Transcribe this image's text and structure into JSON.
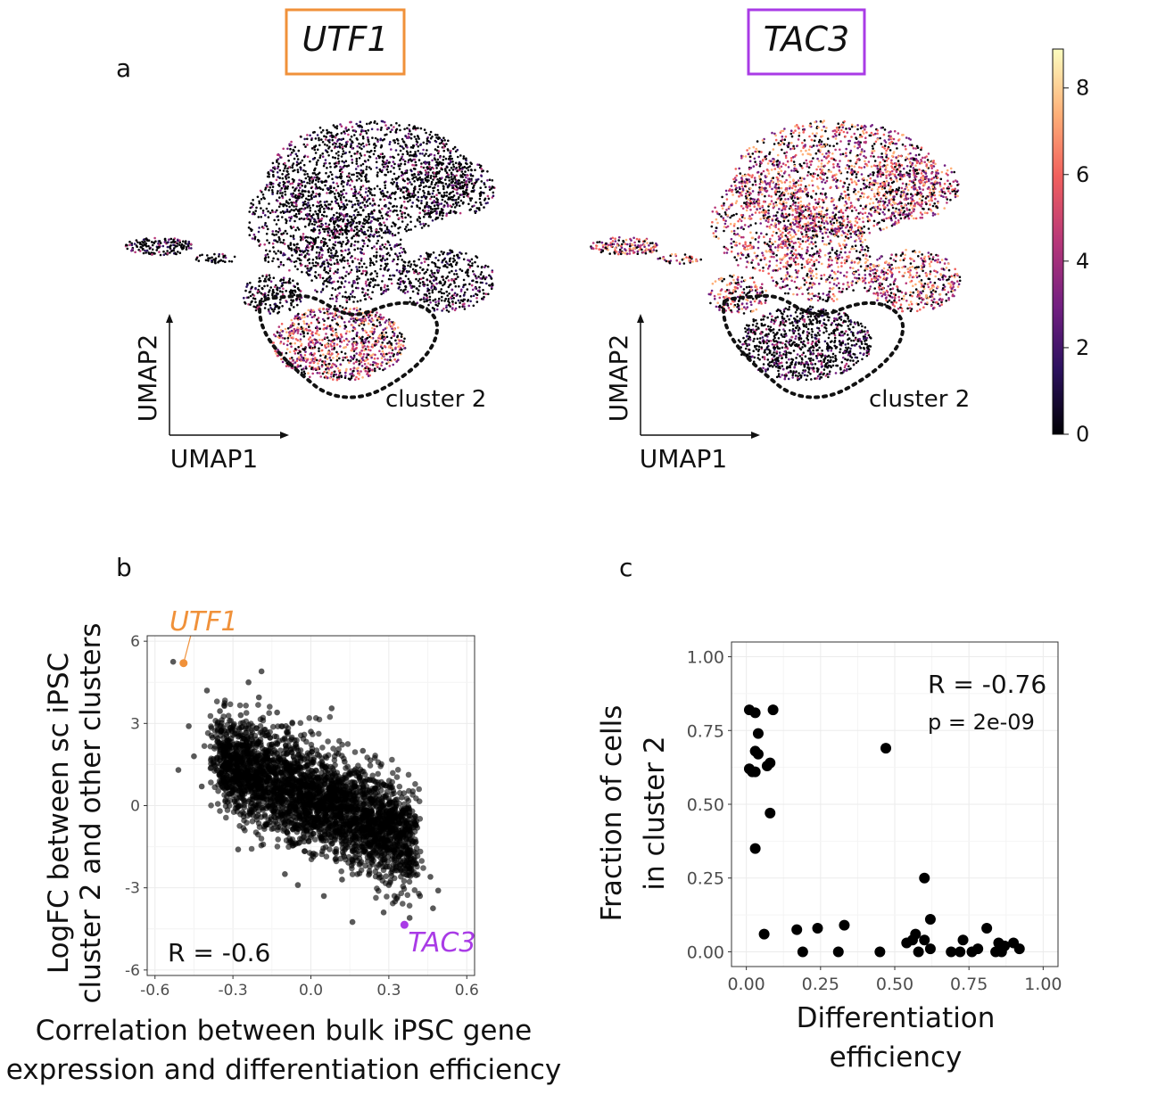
{
  "panel_a": {
    "letter": "a",
    "left": {
      "gene": "UTF1",
      "box_color": "#F0913A",
      "xlabel": "UMAP1",
      "ylabel": "UMAP2",
      "cluster_label": "cluster 2"
    },
    "right": {
      "gene": "TAC3",
      "box_color": "#A93BE6",
      "xlabel": "UMAP1",
      "ylabel": "UMAP2",
      "cluster_label": "cluster 2"
    },
    "colorbar": {
      "ticks": [
        "0",
        "2",
        "4",
        "6",
        "8"
      ],
      "min": 0,
      "max": 8.9,
      "colors": [
        "#000004",
        "#2C115F",
        "#721F81",
        "#B73779",
        "#F1605D",
        "#FEAF77",
        "#FCFDBF"
      ]
    }
  },
  "panel_b": {
    "letter": "b"
  },
  "panel_c": {
    "letter": "c"
  },
  "chart_data": [
    {
      "panel": "b",
      "type": "scatter",
      "xlabel": "Correlation between bulk iPSC gene expression and differentiation efficiency",
      "xlabel_lines": [
        "Correlation between bulk iPSC gene",
        "expression and differentiation efficiency"
      ],
      "ylabel": "LogFC between sc iPSC cluster 2 and other clusters",
      "ylabel_lines": [
        "LogFC between sc iPSC",
        "cluster 2 and other clusters"
      ],
      "xlim": [
        -0.63,
        0.63
      ],
      "ylim": [
        -6.2,
        6.2
      ],
      "xticks": [
        -0.6,
        -0.3,
        0.0,
        0.3,
        0.6
      ],
      "xtick_labels": [
        "-0.6",
        "-0.3",
        "0.0",
        "0.3",
        "0.6"
      ],
      "yticks": [
        -6,
        -3,
        0,
        3,
        6
      ],
      "ytick_labels": [
        "-6",
        "-3",
        "0",
        "3",
        "6"
      ],
      "correlation": "R = -0.6",
      "bulk_trend": {
        "n": 3200,
        "slope": -7.2,
        "intercept": 0.3,
        "sd": 0.9,
        "note": "dense cloud of genes along negative trend"
      },
      "outliers": [
        {
          "x": -0.53,
          "y": 5.25
        },
        {
          "x": -0.4,
          "y": 4.2
        },
        {
          "x": -0.35,
          "y": 3.45
        },
        {
          "x": -0.27,
          "y": 3.3
        },
        {
          "x": -0.24,
          "y": 4.5
        },
        {
          "x": -0.2,
          "y": 3.95
        },
        {
          "x": -0.19,
          "y": 4.9
        },
        {
          "x": -0.13,
          "y": 3.4
        },
        {
          "x": -0.47,
          "y": 2.9
        },
        {
          "x": -0.51,
          "y": 1.3
        },
        {
          "x": -0.45,
          "y": 1.8
        },
        {
          "x": -0.42,
          "y": 0.7
        },
        {
          "x": 0.08,
          "y": 3.55
        },
        {
          "x": 0.13,
          "y": 1.6
        },
        {
          "x": 0.2,
          "y": 2.0
        },
        {
          "x": 0.0,
          "y": 2.7
        },
        {
          "x": 0.35,
          "y": 0.3
        },
        {
          "x": 0.4,
          "y": -0.6
        },
        {
          "x": 0.28,
          "y": -3.9
        },
        {
          "x": 0.33,
          "y": -3.4
        },
        {
          "x": 0.42,
          "y": -3.3
        },
        {
          "x": 0.46,
          "y": -2.6
        },
        {
          "x": 0.49,
          "y": -3.1
        },
        {
          "x": 0.47,
          "y": -3.75
        },
        {
          "x": 0.38,
          "y": -4.1
        },
        {
          "x": 0.3,
          "y": -2.9
        },
        {
          "x": -0.1,
          "y": -2.5
        },
        {
          "x": -0.05,
          "y": -2.9
        },
        {
          "x": 0.05,
          "y": -3.3
        },
        {
          "x": 0.16,
          "y": -4.25
        },
        {
          "x": 0.12,
          "y": -2.7
        },
        {
          "x": -0.28,
          "y": -1.6
        }
      ],
      "highlighted": [
        {
          "gene": "UTF1",
          "x": -0.49,
          "y": 5.2,
          "color": "#F0913A"
        },
        {
          "gene": "TAC3",
          "x": 0.36,
          "y": -4.35,
          "color": "#A93BE6"
        }
      ]
    },
    {
      "panel": "c",
      "type": "scatter",
      "xlabel": "Differentiation efficiency",
      "xlabel_lines": [
        "Differentiation",
        "efficiency"
      ],
      "ylabel": "Fraction of cells in cluster 2",
      "ylabel_lines": [
        "Fraction of cells",
        "in cluster 2"
      ],
      "xlim": [
        -0.05,
        1.05
      ],
      "ylim": [
        -0.05,
        1.05
      ],
      "xticks": [
        0,
        0.25,
        0.5,
        0.75,
        1.0
      ],
      "xtick_labels": [
        "0.00",
        "0.25",
        "0.50",
        "0.75",
        "1.00"
      ],
      "yticks": [
        0,
        0.25,
        0.5,
        0.75,
        1.0
      ],
      "ytick_labels": [
        "0.00",
        "0.25",
        "0.50",
        "0.75",
        "1.00"
      ],
      "correlation": "R = -0.76",
      "p_value": "p = 2e-09",
      "points": [
        {
          "x": 0.01,
          "y": 0.82
        },
        {
          "x": 0.03,
          "y": 0.81
        },
        {
          "x": 0.09,
          "y": 0.82
        },
        {
          "x": 0.04,
          "y": 0.74
        },
        {
          "x": 0.03,
          "y": 0.68
        },
        {
          "x": 0.04,
          "y": 0.67
        },
        {
          "x": 0.08,
          "y": 0.64
        },
        {
          "x": 0.07,
          "y": 0.63
        },
        {
          "x": 0.01,
          "y": 0.62
        },
        {
          "x": 0.02,
          "y": 0.61
        },
        {
          "x": 0.03,
          "y": 0.61
        },
        {
          "x": 0.08,
          "y": 0.47
        },
        {
          "x": 0.03,
          "y": 0.35
        },
        {
          "x": 0.06,
          "y": 0.06
        },
        {
          "x": 0.47,
          "y": 0.69
        },
        {
          "x": 0.6,
          "y": 0.25
        },
        {
          "x": 0.62,
          "y": 0.11
        },
        {
          "x": 0.17,
          "y": 0.075
        },
        {
          "x": 0.24,
          "y": 0.08
        },
        {
          "x": 0.19,
          "y": 0.0
        },
        {
          "x": 0.33,
          "y": 0.09
        },
        {
          "x": 0.31,
          "y": 0.0
        },
        {
          "x": 0.45,
          "y": 0.0
        },
        {
          "x": 0.54,
          "y": 0.03
        },
        {
          "x": 0.56,
          "y": 0.04
        },
        {
          "x": 0.57,
          "y": 0.06
        },
        {
          "x": 0.58,
          "y": 0.0
        },
        {
          "x": 0.6,
          "y": 0.04
        },
        {
          "x": 0.62,
          "y": 0.01
        },
        {
          "x": 0.69,
          "y": 0.0
        },
        {
          "x": 0.72,
          "y": 0.0
        },
        {
          "x": 0.73,
          "y": 0.04
        },
        {
          "x": 0.76,
          "y": 0.0
        },
        {
          "x": 0.78,
          "y": 0.01
        },
        {
          "x": 0.81,
          "y": 0.08
        },
        {
          "x": 0.84,
          "y": 0.0
        },
        {
          "x": 0.85,
          "y": 0.03
        },
        {
          "x": 0.86,
          "y": 0.0
        },
        {
          "x": 0.87,
          "y": 0.02
        },
        {
          "x": 0.9,
          "y": 0.03
        },
        {
          "x": 0.92,
          "y": 0.01
        }
      ]
    }
  ]
}
